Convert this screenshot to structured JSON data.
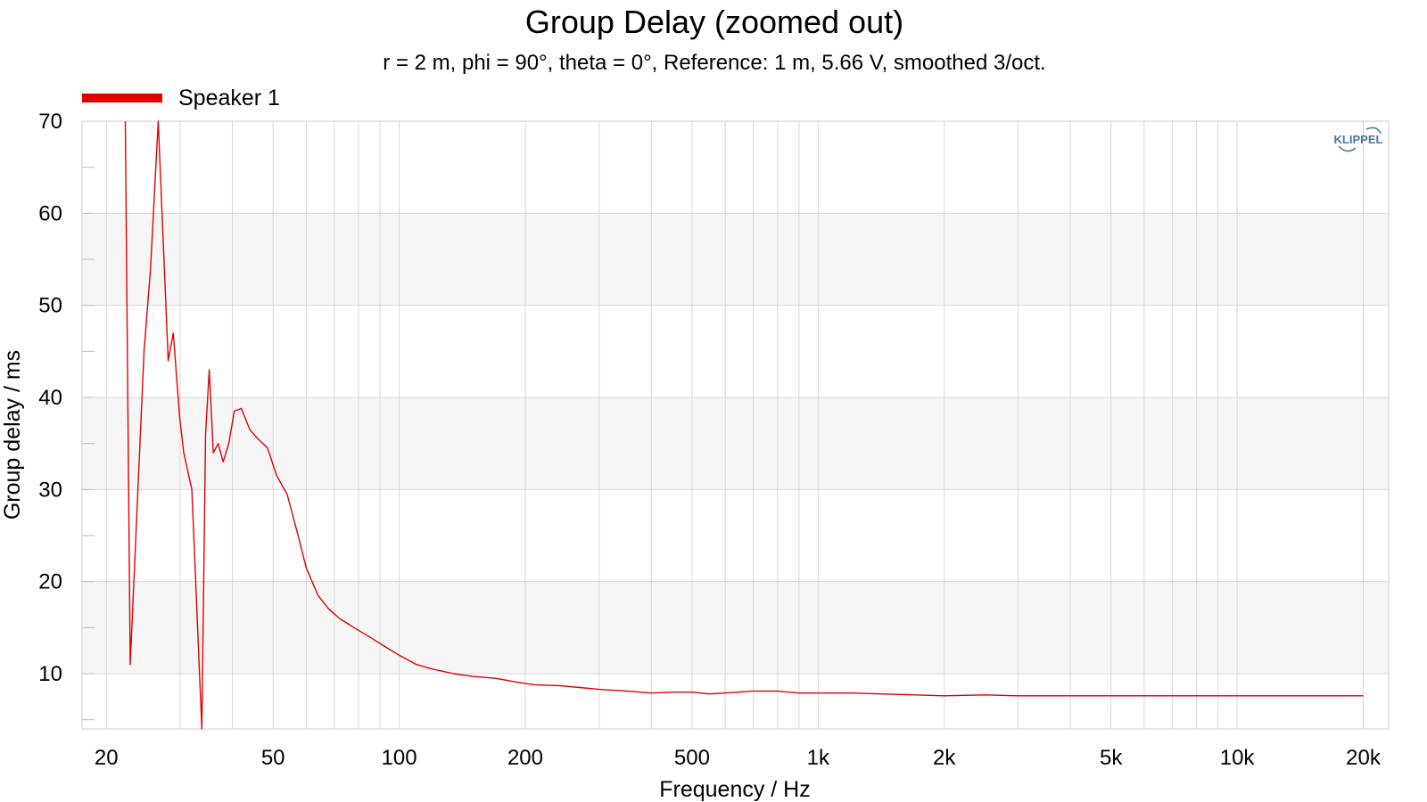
{
  "chart_data": {
    "type": "line",
    "title": "Group Delay (zoomed out)",
    "subtitle": "r = 2 m, phi = 90°, theta = 0°, Reference: 1 m, 5.66 V, smoothed 3/oct.",
    "xlabel": "Frequency / Hz",
    "ylabel": "Group delay / ms",
    "xscale": "log",
    "xlim": [
      17.5,
      23000
    ],
    "ylim": [
      4,
      70
    ],
    "grid": true,
    "legend_position": "top-left",
    "x_ticks": [
      {
        "value": 20,
        "label": "20"
      },
      {
        "value": 50,
        "label": "50"
      },
      {
        "value": 100,
        "label": "100"
      },
      {
        "value": 200,
        "label": "200"
      },
      {
        "value": 500,
        "label": "500"
      },
      {
        "value": 1000,
        "label": "1k"
      },
      {
        "value": 2000,
        "label": "2k"
      },
      {
        "value": 5000,
        "label": "5k"
      },
      {
        "value": 10000,
        "label": "10k"
      },
      {
        "value": 20000,
        "label": "20k"
      }
    ],
    "y_ticks": [
      {
        "value": 10,
        "label": "10"
      },
      {
        "value": 20,
        "label": "20"
      },
      {
        "value": 30,
        "label": "30"
      },
      {
        "value": 40,
        "label": "40"
      },
      {
        "value": 50,
        "label": "50"
      },
      {
        "value": 60,
        "label": "60"
      },
      {
        "value": 70,
        "label": "70"
      }
    ],
    "series": [
      {
        "name": "Speaker 1",
        "color": "#e00000",
        "x": [
          22.2,
          22.8,
          24.6,
          25.5,
          26.6,
          28.1,
          28.9,
          29.9,
          30.6,
          32.0,
          33.8,
          34.5,
          35.2,
          36.0,
          37.0,
          38.0,
          39.2,
          40.4,
          42.0,
          44.0,
          46.0,
          48.5,
          51.0,
          54.0,
          57.0,
          60.0,
          64.0,
          68.0,
          72.0,
          78.0,
          85.0,
          92.0,
          100.0,
          110.0,
          120.0,
          135.0,
          150.0,
          170.0,
          190.0,
          210.0,
          240.0,
          270.0,
          300.0,
          350.0,
          400.0,
          450.0,
          500.0,
          550.0,
          600.0,
          700.0,
          800.0,
          900.0,
          1000.0,
          1200.0,
          1400.0,
          1700.0,
          2000.0,
          2500.0,
          3000.0,
          3500.0,
          4000.0,
          4500.0,
          5000.0,
          6000.0,
          7000.0,
          8000.0,
          9000.0,
          10000.0,
          11000.0,
          12000.0,
          14000.0,
          16000.0,
          18000.0,
          20000.0
        ],
        "y": [
          70,
          11,
          45,
          54,
          70,
          44,
          47,
          38,
          34,
          30,
          4,
          36,
          43,
          34,
          35,
          33,
          35,
          38.5,
          38.8,
          36.5,
          35.5,
          34.5,
          31.5,
          29.5,
          25.5,
          21.5,
          18.5,
          17,
          16,
          15,
          14,
          13,
          12,
          11,
          10.5,
          10,
          9.7,
          9.5,
          9.1,
          8.8,
          8.7,
          8.5,
          8.3,
          8.1,
          7.9,
          8.0,
          8.0,
          7.8,
          7.9,
          8.1,
          8.1,
          7.9,
          7.9,
          7.9,
          7.8,
          7.7,
          7.6,
          7.7,
          7.6,
          7.6,
          7.6,
          7.6,
          7.6,
          7.6,
          7.6,
          7.6,
          7.6,
          7.6,
          7.6,
          7.6,
          7.6,
          7.6,
          7.6,
          7.6
        ]
      }
    ]
  },
  "logo": {
    "text": "KLIPPEL",
    "color": "#4a7a9a"
  },
  "colors": {
    "band": "#f6f6f6",
    "grid": "#d8d8d8",
    "border": "#cfcfcf"
  }
}
